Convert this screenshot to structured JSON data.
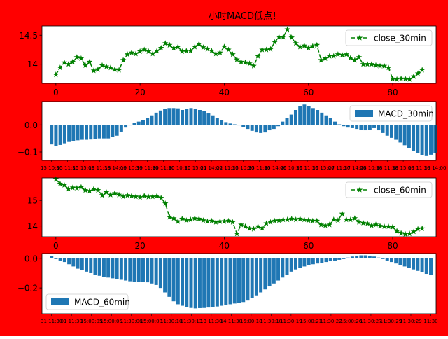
{
  "figure": {
    "title": "小时MACD低点！",
    "background": "#ff0000"
  },
  "colors": {
    "close_line": "#008000",
    "macd_bar": "#1f77b4",
    "axes_bg": "#ffffff"
  },
  "chart_data": [
    {
      "type": "line",
      "legend": "close_30min",
      "legend_position": "upper right",
      "x_ticks": [
        0,
        20,
        40,
        60,
        80
      ],
      "y_ticks": [
        14.0,
        14.5
      ],
      "xlim": [
        -3.3,
        90.3
      ],
      "ylim": [
        13.67,
        14.66
      ],
      "x": [
        0,
        1,
        2,
        3,
        4,
        5,
        6,
        7,
        8,
        9,
        10,
        11,
        12,
        13,
        14,
        15,
        16,
        17,
        18,
        19,
        20,
        21,
        22,
        23,
        24,
        25,
        26,
        27,
        28,
        29,
        30,
        31,
        32,
        33,
        34,
        35,
        36,
        37,
        38,
        39,
        40,
        41,
        42,
        43,
        44,
        45,
        46,
        47,
        48,
        49,
        50,
        51,
        52,
        53,
        54,
        55,
        56,
        57,
        58,
        59,
        60,
        61,
        62,
        63,
        64,
        65,
        66,
        67,
        68,
        69,
        70,
        71,
        72,
        73,
        74,
        75,
        76,
        77,
        78,
        79,
        80,
        81,
        82,
        83,
        84,
        85,
        86,
        87
      ],
      "values": [
        13.82,
        13.94,
        14.03,
        14.0,
        14.04,
        14.12,
        14.1,
        13.98,
        14.04,
        13.89,
        13.91,
        13.98,
        13.96,
        13.94,
        13.91,
        13.9,
        14.07,
        14.17,
        14.2,
        14.18,
        14.22,
        14.25,
        14.22,
        14.18,
        14.23,
        14.28,
        14.36,
        14.33,
        14.28,
        14.3,
        14.22,
        14.23,
        14.23,
        14.3,
        14.35,
        14.29,
        14.26,
        14.23,
        14.18,
        14.2,
        14.3,
        14.25,
        14.17,
        14.08,
        14.04,
        14.03,
        14.01,
        13.97,
        14.14,
        14.25,
        14.25,
        14.26,
        14.38,
        14.47,
        14.47,
        14.6,
        14.46,
        14.36,
        14.3,
        14.32,
        14.28,
        14.31,
        14.33,
        14.07,
        14.1,
        14.14,
        14.14,
        14.17,
        14.16,
        14.17,
        14.11,
        14.07,
        14.12,
        14.0,
        14.0,
        14.0,
        13.98,
        13.97,
        13.97,
        13.94,
        13.75,
        13.74,
        13.75,
        13.75,
        13.74,
        13.79,
        13.84,
        13.9
      ]
    },
    {
      "type": "bar",
      "legend": "MACD_30min",
      "legend_position": "upper right",
      "y_ticks": [
        0.0,
        -0.1
      ],
      "y_tick_labels": [
        "0.0",
        "−0.1"
      ],
      "xlim": [
        -2.2,
        88.2
      ],
      "ylim": [
        -0.131,
        0.086
      ],
      "x_tick_labels": [
        "15 10:30",
        "15 11:30",
        "15 15:00",
        "18 11:30",
        "18 14:00",
        "19 10:30",
        "19 11:30",
        "20 11:30",
        "20 10:30",
        "20 15:00",
        "21 14:00",
        "22 11:30",
        "25 10:30",
        "25 11:30",
        "25 14:00",
        "26 10:30",
        "26 11:30",
        "26 15:00",
        "27 11:30",
        "27 14:00",
        "28 10:30",
        "28 11:30",
        "28 15:00",
        "29 11:30",
        "29 14:00"
      ],
      "values": [
        -0.072,
        -0.077,
        -0.074,
        -0.068,
        -0.063,
        -0.06,
        -0.057,
        -0.055,
        -0.055,
        -0.054,
        -0.053,
        -0.05,
        -0.05,
        -0.05,
        -0.045,
        -0.04,
        -0.025,
        -0.01,
        -0.002,
        0.007,
        0.012,
        0.018,
        0.025,
        0.035,
        0.045,
        0.053,
        0.058,
        0.062,
        0.062,
        0.061,
        0.055,
        0.06,
        0.062,
        0.06,
        0.055,
        0.05,
        0.042,
        0.035,
        0.025,
        0.018,
        0.01,
        0.005,
        0.002,
        -0.002,
        -0.008,
        -0.015,
        -0.022,
        -0.028,
        -0.03,
        -0.028,
        -0.02,
        -0.015,
        -0.005,
        0.012,
        0.025,
        0.038,
        0.055,
        0.068,
        0.075,
        0.07,
        0.062,
        0.055,
        0.045,
        0.035,
        0.025,
        0.012,
        0.002,
        -0.005,
        -0.01,
        -0.012,
        -0.015,
        -0.018,
        -0.02,
        -0.018,
        -0.012,
        -0.02,
        -0.03,
        -0.04,
        -0.048,
        -0.055,
        -0.065,
        -0.075,
        -0.085,
        -0.095,
        -0.105,
        -0.112,
        -0.115,
        -0.11,
        -0.105
      ]
    },
    {
      "type": "line",
      "legend": "close_60min",
      "legend_position": "upper right",
      "x_ticks": [
        0,
        20,
        40,
        60,
        80
      ],
      "y_ticks": [
        14,
        15
      ],
      "xlim": [
        -3.3,
        90.3
      ],
      "ylim": [
        13.58,
        15.88
      ],
      "x": [
        0,
        1,
        2,
        3,
        4,
        5,
        6,
        7,
        8,
        9,
        10,
        11,
        12,
        13,
        14,
        15,
        16,
        17,
        18,
        19,
        20,
        21,
        22,
        23,
        24,
        25,
        26,
        27,
        28,
        29,
        30,
        31,
        32,
        33,
        34,
        35,
        36,
        37,
        38,
        39,
        40,
        41,
        42,
        43,
        44,
        45,
        46,
        47,
        48,
        49,
        50,
        51,
        52,
        53,
        54,
        55,
        56,
        57,
        58,
        59,
        60,
        61,
        62,
        63,
        64,
        65,
        66,
        67,
        68,
        69,
        70,
        71,
        72,
        73,
        74,
        75,
        76,
        77,
        78,
        79,
        80,
        81,
        82,
        83,
        84,
        85,
        86,
        87
      ],
      "values": [
        15.83,
        15.65,
        15.6,
        15.45,
        15.5,
        15.48,
        15.52,
        15.4,
        15.37,
        15.45,
        15.4,
        15.2,
        15.32,
        15.22,
        15.28,
        15.22,
        15.15,
        15.2,
        15.18,
        15.15,
        15.12,
        15.18,
        15.14,
        15.15,
        15.18,
        15.1,
        14.88,
        14.35,
        14.3,
        14.18,
        14.28,
        14.22,
        14.25,
        14.3,
        14.28,
        14.22,
        14.18,
        14.2,
        14.15,
        14.18,
        14.18,
        14.2,
        14.15,
        13.7,
        14.05,
        13.98,
        13.9,
        13.88,
        13.98,
        13.92,
        14.1,
        14.15,
        14.2,
        14.22,
        14.25,
        14.25,
        14.28,
        14.25,
        14.28,
        14.25,
        14.22,
        14.2,
        14.2,
        14.05,
        14.02,
        14.05,
        14.25,
        14.22,
        14.48,
        14.25,
        14.25,
        14.3,
        14.15,
        14.12,
        14.1,
        14.02,
        14.05,
        14.0,
        13.98,
        13.98,
        13.96,
        13.8,
        13.72,
        13.68,
        13.7,
        13.78,
        13.88,
        13.9
      ]
    },
    {
      "type": "bar",
      "legend": "MACD_60min",
      "legend_position": "lower left",
      "y_ticks": [
        0.0,
        -0.2
      ],
      "y_tick_labels": [
        "0.0",
        "−0.2"
      ],
      "xlim": [
        -2.2,
        88.2
      ],
      "ylim": [
        -0.374,
        0.032
      ],
      "x_tick_labels": [
        "31 11:30",
        "01 11:30",
        "15:00:05",
        "15:00:05",
        "11:30:06",
        "15:00:08",
        "11:30:10",
        "11:30:13",
        "13 11:30",
        "14 11:30",
        "15:00:18",
        "11:30:18",
        "11:30:19",
        "15:00:21",
        "11:30:22",
        "15:00:26",
        "11:30:27",
        "11:30:29",
        "11:30:29",
        "11:30"
      ],
      "values": [
        0.015,
        -0.005,
        -0.015,
        -0.025,
        -0.04,
        -0.055,
        -0.07,
        -0.08,
        -0.09,
        -0.1,
        -0.11,
        -0.118,
        -0.125,
        -0.13,
        -0.135,
        -0.14,
        -0.145,
        -0.15,
        -0.155,
        -0.158,
        -0.16,
        -0.158,
        -0.162,
        -0.17,
        -0.18,
        -0.2,
        -0.23,
        -0.26,
        -0.29,
        -0.31,
        -0.32,
        -0.33,
        -0.335,
        -0.338,
        -0.336,
        -0.335,
        -0.332,
        -0.33,
        -0.325,
        -0.32,
        -0.315,
        -0.31,
        -0.305,
        -0.3,
        -0.295,
        -0.285,
        -0.27,
        -0.25,
        -0.23,
        -0.21,
        -0.19,
        -0.17,
        -0.15,
        -0.13,
        -0.11,
        -0.09,
        -0.075,
        -0.065,
        -0.055,
        -0.045,
        -0.04,
        -0.035,
        -0.03,
        -0.025,
        -0.02,
        -0.015,
        -0.01,
        -0.005,
        0.005,
        0.012,
        0.018,
        0.02,
        0.02,
        0.018,
        0.012,
        0.005,
        -0.005,
        -0.015,
        -0.025,
        -0.035,
        -0.045,
        -0.055,
        -0.065,
        -0.075,
        -0.085,
        -0.095,
        -0.105,
        -0.11
      ]
    }
  ]
}
